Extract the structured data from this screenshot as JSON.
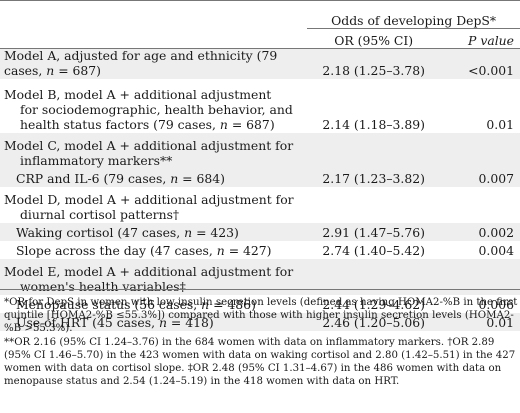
{
  "header": {
    "group_label": "Odds of developing DepS*",
    "col_or": "OR (95% CI)",
    "col_p": "P value"
  },
  "rows": [
    {
      "label_a": "Model A, adjusted for age and ethnicity (79 cases, ",
      "label_n": "n",
      "label_b": " = 687)",
      "or": "2.18 (1.25–3.78)",
      "p": "<0.001"
    },
    {
      "label_line1": "Model B, model A + additional adjustment",
      "label_line2": "for sociodemographic, health behavior, and",
      "label_line3a": "health status factors (79 cases, ",
      "label_n": "n",
      "label_line3b": " = 687)",
      "or": "2.14 (1.18–3.89)",
      "p": "0.01"
    },
    {
      "label_line1": "Model C, model A + additional adjustment for",
      "label_line2": "inflammatory markers**"
    },
    {
      "label_a": "CRP and IL-6 (79 cases, ",
      "label_n": "n",
      "label_b": " = 684)",
      "or": "2.17 (1.23–3.82)",
      "p": "0.007"
    },
    {
      "label_line1": "Model D, model A + additional adjustment for",
      "label_line2": "diurnal cortisol patterns†"
    },
    {
      "label_a": "Waking cortisol (47 cases, ",
      "label_n": "n",
      "label_b": " = 423)",
      "or": "2.91 (1.47–5.76)",
      "p": "0.002"
    },
    {
      "label_a": "Slope across the day (47 cases, ",
      "label_n": "n",
      "label_b": " = 427)",
      "or": "2.74 (1.40–5.42)",
      "p": "0.004"
    },
    {
      "label_line1": "Model E, model A + additional adjustment for",
      "label_line2": "women's health variables‡"
    },
    {
      "label_a": "Menopause status (56 cases, ",
      "label_n": "n",
      "label_b": " = 486)",
      "or": "2.44 (1.29–4.62)",
      "p": "0.006"
    },
    {
      "label_a": "Use of HRT (45 cases, ",
      "label_n": "n",
      "label_b": " = 418)",
      "or": "2.46 (1.20–5.06)",
      "p": "0.01"
    }
  ],
  "footnotes": {
    "f1": "*OR for DepS in women with low insulin secretion levels (defined as having HOMA2-%B in the first quintile [HOMA2-%B ≤55.3%]) compared with those with higher insulin secretion levels (HOMA2-%B >55.3%).",
    "f2": "**OR 2.16 (95% CI 1.24–3.76) in the 684 women with data on inflammatory markers. †OR 2.89 (95% CI 1.46–5.70) in the 423 women with data on waking cortisol and 2.80 (1.42–5.51) in the 427 women with data on cortisol slope. ‡OR 2.48 (95% CI 1.31–4.67) in the 486 women with data on menopause status and 2.54 (1.24–5.19) in the 418 women with data on HRT."
  }
}
